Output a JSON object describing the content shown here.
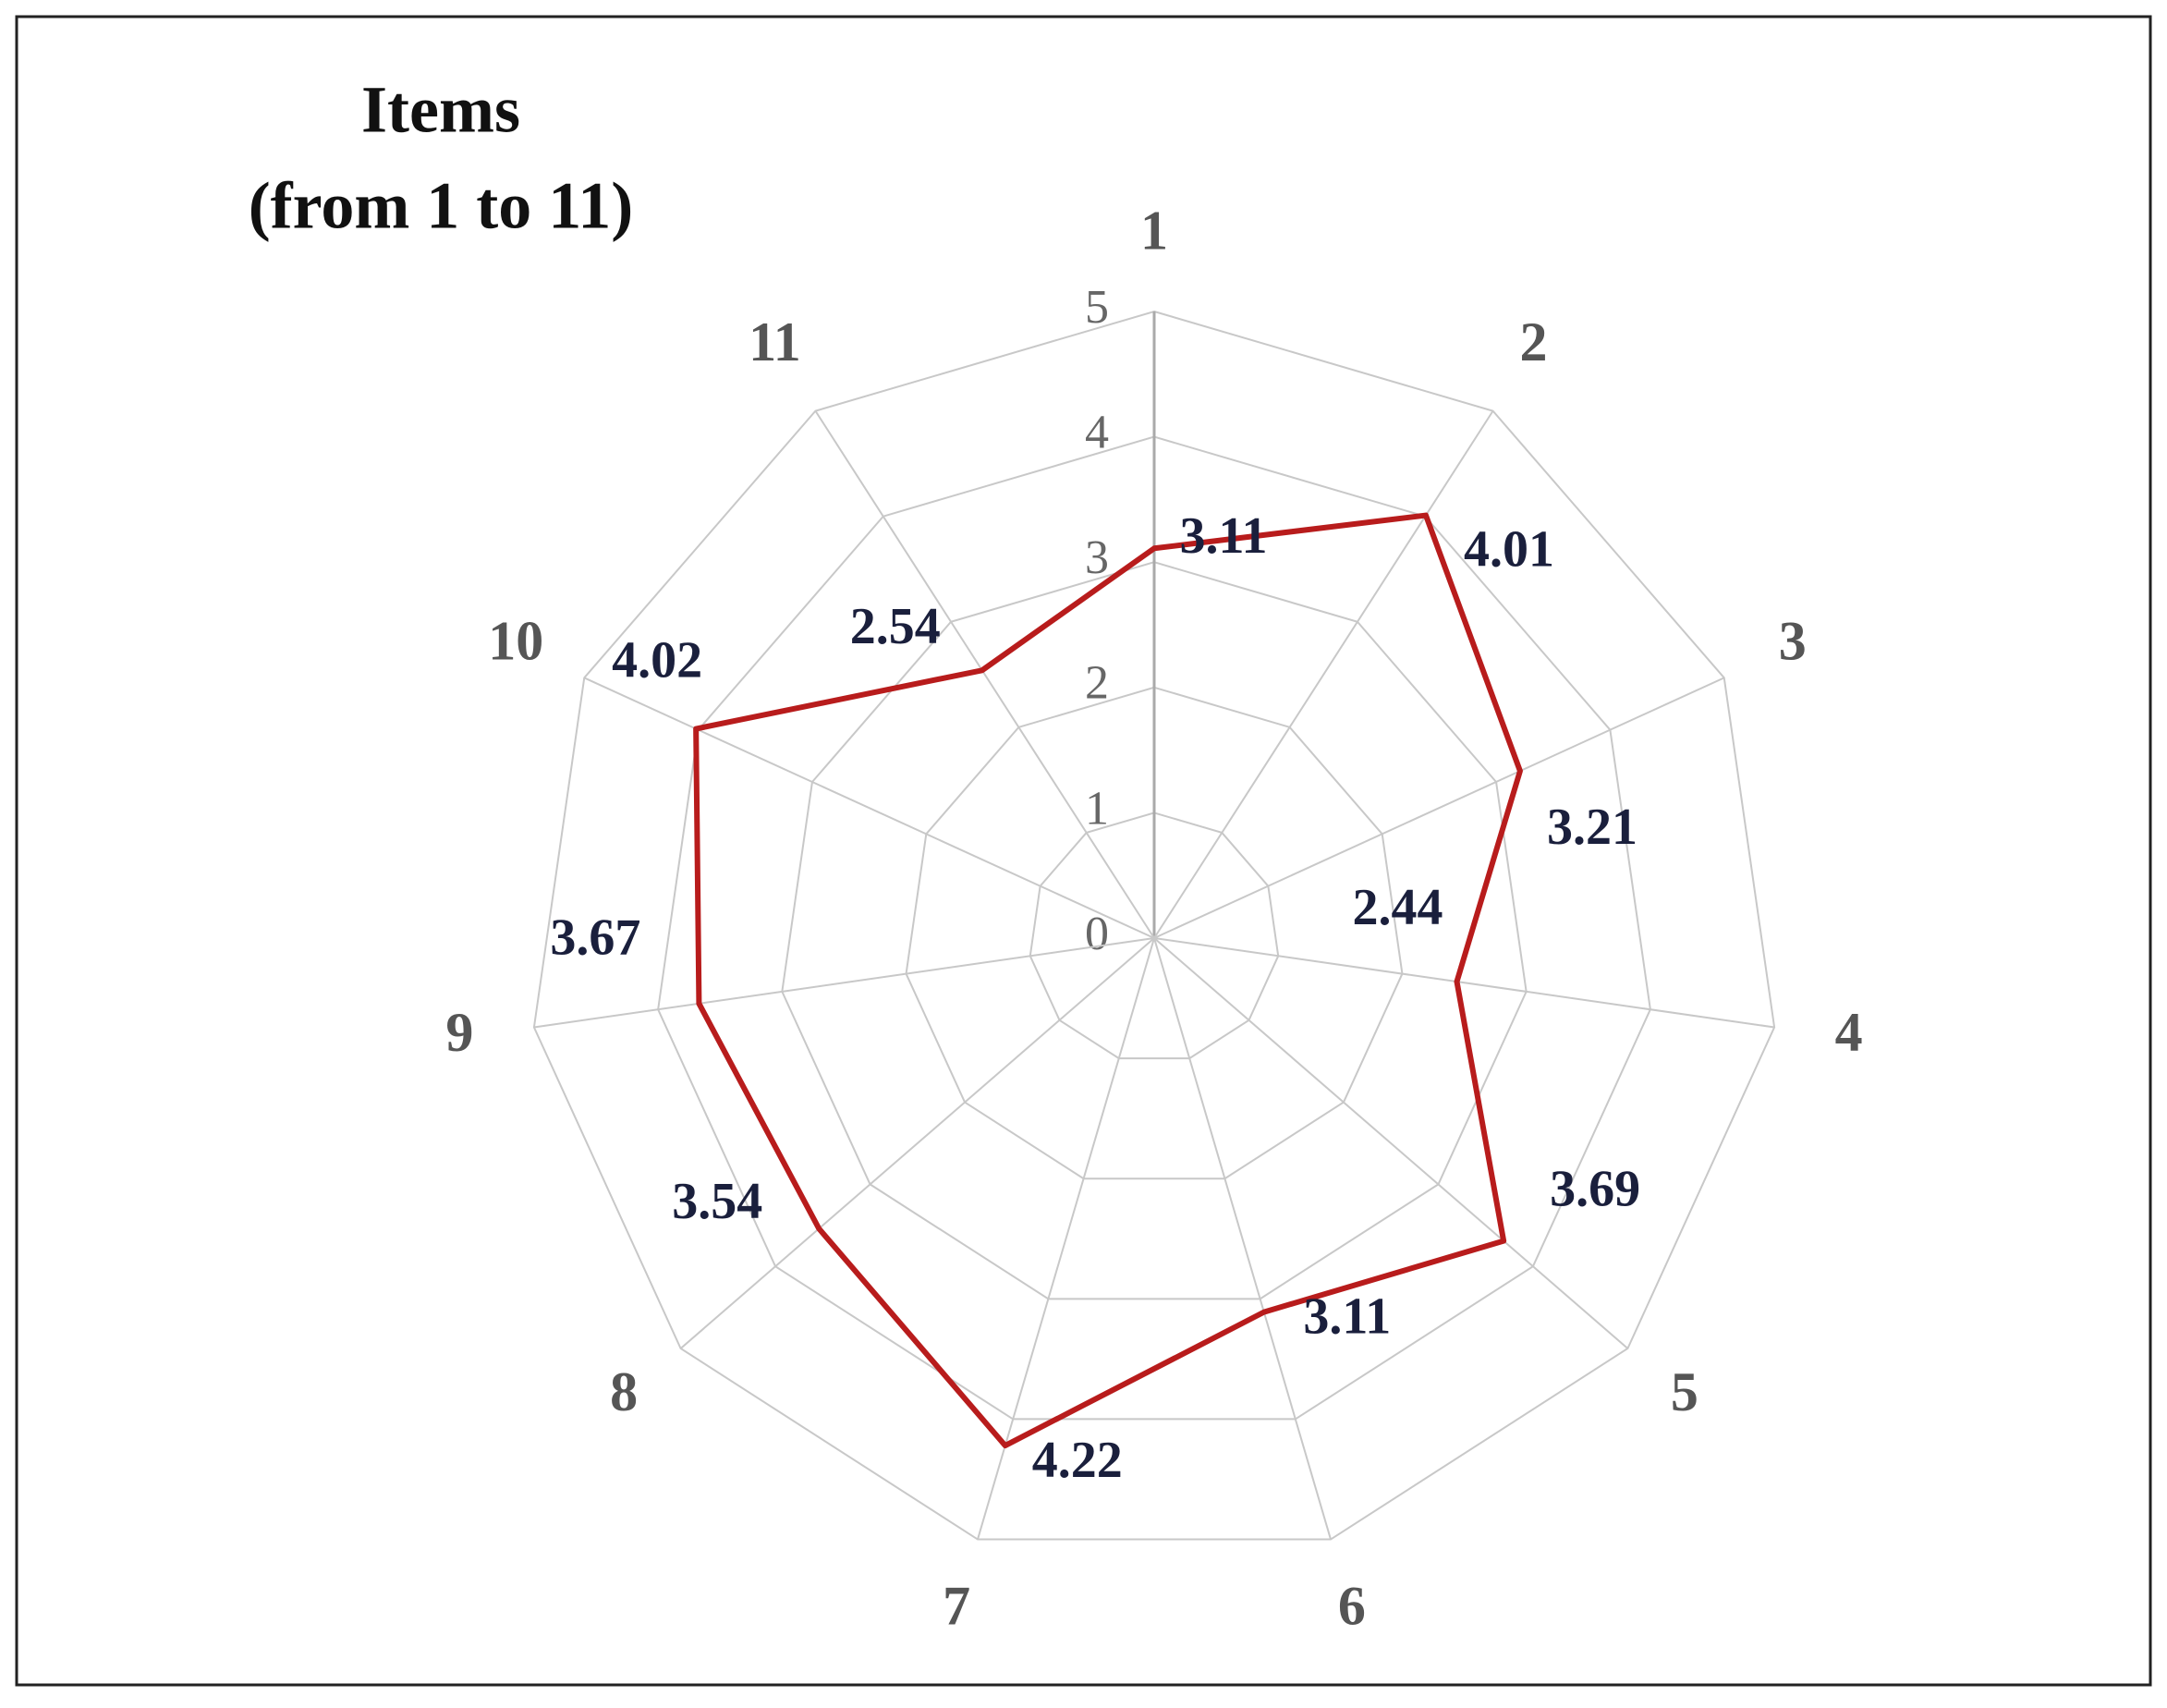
{
  "chart_data": {
    "type": "radar",
    "title": "Items",
    "subtitle": "(from 1 to 11)",
    "categories": [
      "1",
      "2",
      "3",
      "4",
      "5",
      "6",
      "7",
      "8",
      "9",
      "10",
      "11"
    ],
    "series": [
      {
        "color": "#b81c1c",
        "values": [
          3.11,
          4.01,
          3.21,
          2.44,
          3.69,
          3.11,
          4.22,
          3.54,
          3.67,
          4.02,
          2.54
        ]
      }
    ],
    "ylim": [
      0,
      5
    ],
    "yticks": [
      0,
      1,
      2,
      3,
      4,
      5
    ],
    "grid": true
  }
}
